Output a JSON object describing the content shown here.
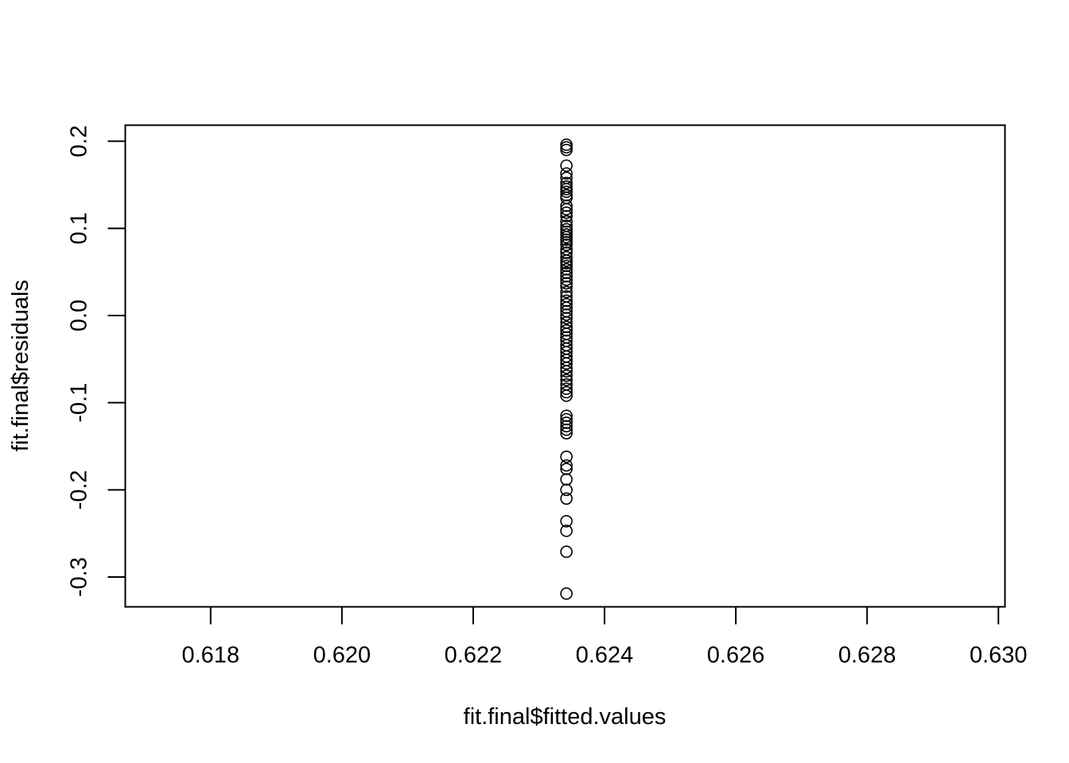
{
  "chart_data": {
    "type": "scatter",
    "title": "",
    "xlabel": "fit.final$fitted.values",
    "ylabel": "fit.final$residuals",
    "xlim": [
      0.6167,
      0.6301
    ],
    "ylim": [
      -0.3342,
      0.2184
    ],
    "grid": false,
    "legend": "none",
    "x_ticks": [
      {
        "value": 0.618,
        "label": "0.618"
      },
      {
        "value": 0.62,
        "label": "0.620"
      },
      {
        "value": 0.622,
        "label": "0.622"
      },
      {
        "value": 0.624,
        "label": "0.624"
      },
      {
        "value": 0.626,
        "label": "0.626"
      },
      {
        "value": 0.628,
        "label": "0.628"
      },
      {
        "value": 0.63,
        "label": "0.630"
      }
    ],
    "y_ticks": [
      {
        "value": -0.3,
        "label": "-0.3"
      },
      {
        "value": -0.2,
        "label": "-0.2"
      },
      {
        "value": -0.1,
        "label": "-0.1"
      },
      {
        "value": 0.0,
        "label": "0.0"
      },
      {
        "value": 0.1,
        "label": "0.1"
      },
      {
        "value": 0.2,
        "label": "0.2"
      }
    ],
    "series": [
      {
        "x_constant": 0.62342,
        "y": [
          0.196,
          0.193,
          0.19,
          0.172,
          0.163,
          0.158,
          0.152,
          0.148,
          0.145,
          0.142,
          0.138,
          0.135,
          0.126,
          0.122,
          0.118,
          0.114,
          0.108,
          0.103,
          0.099,
          0.096,
          0.093,
          0.09,
          0.087,
          0.084,
          0.081,
          0.076,
          0.072,
          0.067,
          0.063,
          0.06,
          0.057,
          0.053,
          0.049,
          0.045,
          0.041,
          0.037,
          0.033,
          0.027,
          0.022,
          0.017,
          0.013,
          0.009,
          0.005,
          0.001,
          -0.003,
          -0.008,
          -0.013,
          -0.017,
          -0.021,
          -0.025,
          -0.029,
          -0.034,
          -0.038,
          -0.042,
          -0.047,
          -0.051,
          -0.055,
          -0.06,
          -0.064,
          -0.069,
          -0.074,
          -0.079,
          -0.084,
          -0.088,
          -0.092,
          -0.115,
          -0.119,
          -0.123,
          -0.127,
          -0.131,
          -0.135,
          -0.162,
          -0.172,
          -0.176,
          -0.188,
          -0.2,
          -0.21,
          -0.236,
          -0.247,
          -0.271,
          -0.319
        ]
      }
    ]
  }
}
